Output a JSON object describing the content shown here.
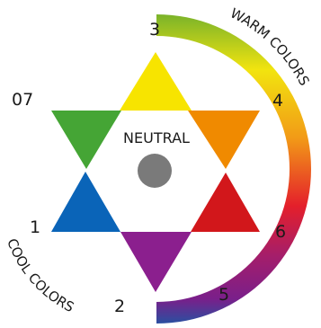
{
  "diagram": {
    "center_label": "NEUTRAL",
    "warm_label": "WARM COLORS",
    "cool_label": "COOL COLORS",
    "numbers": [
      "07",
      "1",
      "2",
      "3",
      "4",
      "5",
      "6"
    ],
    "neutral_color": "#7a7a7a",
    "triangles": [
      {
        "name": "yellow",
        "color": "#f7e400"
      },
      {
        "name": "orange",
        "color": "#f08a00"
      },
      {
        "name": "red",
        "color": "#d2171b"
      },
      {
        "name": "purple",
        "color": "#8b1f8e"
      },
      {
        "name": "blue",
        "color": "#0a64b8"
      },
      {
        "name": "green",
        "color": "#45a535"
      }
    ],
    "arc_gradient": [
      "#7ab32a",
      "#f2e40f",
      "#f29a17",
      "#e41f2b",
      "#a51e6a",
      "#7a1f8a",
      "#2a4fa0"
    ]
  }
}
